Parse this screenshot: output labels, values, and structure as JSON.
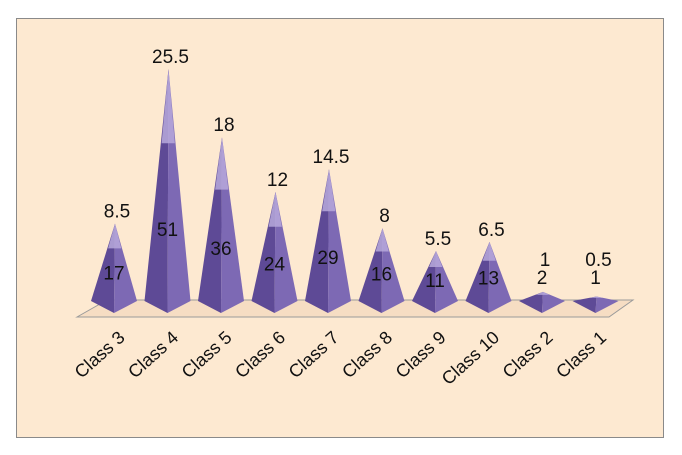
{
  "chart_data": {
    "type": "bar",
    "style": "3d-pyramid",
    "categories": [
      "Class 3",
      "Class 4",
      "Class 5",
      "Class 6",
      "Class 7",
      "Class 8",
      "Class 9",
      "Class 10",
      "Class 2",
      "Class 1"
    ],
    "series": [
      {
        "values": [
          17,
          51,
          36,
          24,
          29,
          16,
          11,
          13,
          2,
          1
        ]
      },
      {
        "values": [
          8.5,
          25.5,
          18,
          12,
          14.5,
          8,
          5.5,
          6.5,
          1,
          0.5
        ]
      }
    ],
    "title": "",
    "xlabel": "",
    "ylabel": "",
    "ylim": [
      0,
      51
    ],
    "grid": false,
    "legend": "none",
    "colors": {
      "background": "#fde9d1",
      "pyramid_dark": "#5e4a96",
      "pyramid_mid": "#7d69b4",
      "pyramid_light": "#b7a9dc",
      "floor": "#f6ddc3"
    }
  }
}
